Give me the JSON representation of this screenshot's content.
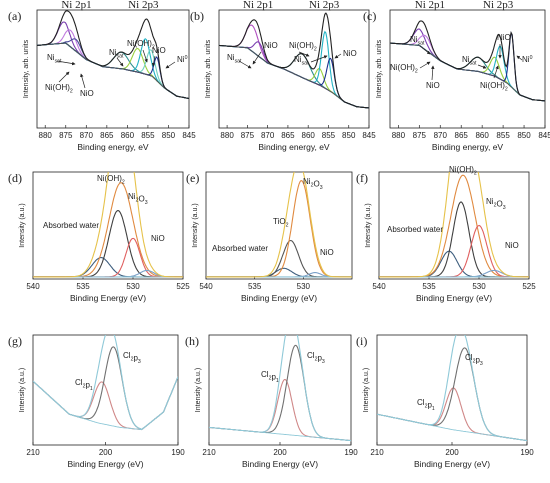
{
  "chart_data": [
    {
      "panel": "(a)",
      "type": "line",
      "xlabel": "Binding energy, eV",
      "ylabel": "Intensity, arb. units",
      "xlim": [
        882,
        845
      ],
      "xticks": [
        880,
        875,
        870,
        865,
        860,
        855,
        850,
        845
      ],
      "ylim": [
        0,
        1
      ],
      "xreverse": true,
      "headers": [
        "Ni 2p1",
        "Ni 2p3"
      ],
      "background": [
        [
          882,
          0.7
        ],
        [
          875,
          0.72
        ],
        [
          870,
          0.58
        ],
        [
          866,
          0.52
        ],
        [
          861,
          0.5
        ],
        [
          857,
          0.47
        ],
        [
          854,
          0.44
        ],
        [
          851,
          0.34
        ],
        [
          848,
          0.27
        ],
        [
          845,
          0.25
        ]
      ],
      "series": [
        {
          "color": "#7a3fb0",
          "center": 875.5,
          "width": 1.4,
          "height": 0.18
        },
        {
          "color": "#c07adf",
          "center": 873.8,
          "width": 1.3,
          "height": 0.14
        },
        {
          "color": "#4b4b9b",
          "center": 872.5,
          "width": 1.2,
          "height": 0.1
        },
        {
          "color": "#2f8f8f",
          "center": 861.5,
          "width": 1.8,
          "height": 0.14
        },
        {
          "color": "#9ad040",
          "center": 857.5,
          "width": 1.3,
          "height": 0.2
        },
        {
          "color": "#22b3c5",
          "center": 855.6,
          "width": 1.1,
          "height": 0.3
        },
        {
          "color": "#6fd1c0",
          "center": 854.3,
          "width": 1.0,
          "height": 0.22
        },
        {
          "color": "#1c2f8f",
          "center": 852.8,
          "width": 0.7,
          "height": 0.2
        }
      ],
      "annotations": [
        "Ni_sat",
        "Ni(OH)2",
        "NiO",
        "Ni_sat",
        "Ni(OH)2",
        "NiO",
        "Ni0"
      ]
    },
    {
      "panel": "(b)",
      "type": "line",
      "xlabel": "Binding energy, eV",
      "ylabel": "Intensity, arb. units",
      "xlim": [
        882,
        845
      ],
      "xticks": [
        880,
        875,
        870,
        865,
        860,
        855,
        850,
        845
      ],
      "ylim": [
        0,
        1
      ],
      "xreverse": true,
      "headers": [
        "Ni 2p1",
        "Ni 2p3"
      ],
      "background": [
        [
          882,
          0.7
        ],
        [
          875,
          0.68
        ],
        [
          870,
          0.55
        ],
        [
          866,
          0.5
        ],
        [
          861,
          0.42
        ],
        [
          857,
          0.36
        ],
        [
          854,
          0.3
        ],
        [
          851,
          0.22
        ],
        [
          848,
          0.18
        ],
        [
          845,
          0.17
        ]
      ],
      "series": [
        {
          "color": "#b04fc0",
          "center": 873.8,
          "width": 1.5,
          "height": 0.22
        },
        {
          "color": "#7a3fb0",
          "center": 872.2,
          "width": 1.1,
          "height": 0.12
        },
        {
          "color": "#2f8f8f",
          "center": 861.5,
          "width": 1.9,
          "height": 0.2
        },
        {
          "color": "#9ad040",
          "center": 857.2,
          "width": 1.0,
          "height": 0.14
        },
        {
          "color": "#22b3c5",
          "center": 855.8,
          "width": 0.9,
          "height": 0.48
        },
        {
          "color": "#1c2f8f",
          "center": 854.5,
          "width": 0.9,
          "height": 0.28
        }
      ],
      "annotations": [
        "Ni_sat",
        "NiO",
        "Ni(OH)2",
        "Ni_sat",
        "NiO"
      ]
    },
    {
      "panel": "(c)",
      "type": "line",
      "xlabel": "Binding energy, eV",
      "ylabel": "Intensity, arb. units",
      "xlim": [
        882,
        845
      ],
      "xticks": [
        880,
        875,
        870,
        865,
        860,
        855,
        850,
        845
      ],
      "ylim": [
        0,
        1
      ],
      "xreverse": true,
      "headers": [
        "Ni 2p1",
        "Ni 2p3"
      ],
      "background": [
        [
          882,
          0.72
        ],
        [
          875,
          0.7
        ],
        [
          870,
          0.57
        ],
        [
          866,
          0.5
        ],
        [
          861,
          0.48
        ],
        [
          857,
          0.44
        ],
        [
          854,
          0.38
        ],
        [
          851,
          0.28
        ],
        [
          848,
          0.24
        ],
        [
          845,
          0.23
        ]
      ],
      "series": [
        {
          "color": "#7a3fb0",
          "center": 875.0,
          "width": 1.4,
          "height": 0.14
        },
        {
          "color": "#c07adf",
          "center": 873.5,
          "width": 1.3,
          "height": 0.12
        },
        {
          "color": "#2f8f8f",
          "center": 861.0,
          "width": 1.8,
          "height": 0.12
        },
        {
          "color": "#9ad040",
          "center": 857.0,
          "width": 1.1,
          "height": 0.16
        },
        {
          "color": "#22b3c5",
          "center": 855.7,
          "width": 0.9,
          "height": 0.28
        },
        {
          "color": "#1c2f8f",
          "center": 853.0,
          "width": 0.6,
          "height": 0.46
        }
      ],
      "annotations": [
        "Ni_sat",
        "Ni(OH)2",
        "NiO",
        "Ni_sat",
        "NiO",
        "Ni(OH)2",
        "Ni0"
      ]
    },
    {
      "panel": "(d)",
      "type": "line",
      "xlabel": "Binding Energy (eV)",
      "ylabel": "Intensity (a.u.)",
      "xlim": [
        540,
        525
      ],
      "xticks": [
        540,
        535,
        530,
        525
      ],
      "ylim": [
        0,
        1
      ],
      "xreverse": true,
      "background": [
        [
          540,
          0.02
        ],
        [
          525,
          0.02
        ]
      ],
      "series": [
        {
          "color": "#3f5f7f",
          "center": 533.2,
          "width": 0.9,
          "height": 0.18
        },
        {
          "color": "#404040",
          "center": 531.5,
          "width": 0.9,
          "height": 0.62
        },
        {
          "color": "#e08a40",
          "center": 531.2,
          "width": 1.2,
          "height": 0.88
        },
        {
          "color": "#e06060",
          "center": 530.0,
          "width": 0.7,
          "height": 0.36
        },
        {
          "color": "#7aa0c8",
          "center": 528.6,
          "width": 0.7,
          "height": 0.06
        }
      ],
      "annotations": [
        "Ni(OH)2",
        "Ni2O3",
        "Absorbed water",
        "NiO"
      ]
    },
    {
      "panel": "(e)",
      "type": "line",
      "xlabel": "Binding Energy (eV)",
      "ylabel": "Intensity (a.u.)",
      "xlim": [
        540,
        525
      ],
      "xticks": [
        540,
        535,
        530
      ],
      "ylim": [
        0,
        1
      ],
      "xreverse": true,
      "background": [
        [
          540,
          0.02
        ],
        [
          525,
          0.02
        ]
      ],
      "series": [
        {
          "color": "#3f5f7f",
          "center": 532.0,
          "width": 0.8,
          "height": 0.08
        },
        {
          "color": "#555555",
          "center": 531.3,
          "width": 0.8,
          "height": 0.34
        },
        {
          "color": "#e08a40",
          "center": 530.2,
          "width": 0.9,
          "height": 0.9
        },
        {
          "color": "#7aa0c8",
          "center": 528.8,
          "width": 0.6,
          "height": 0.04
        }
      ],
      "annotations": [
        "Ni2O3",
        "TiO2",
        "Absorbed water",
        "NiO"
      ]
    },
    {
      "panel": "(f)",
      "type": "line",
      "xlabel": "Binding Energy (eV)",
      "ylabel": "Intensity (a.u.)",
      "xlim": [
        540,
        525
      ],
      "xticks": [
        540,
        535,
        530,
        525
      ],
      "ylim": [
        0,
        1
      ],
      "xreverse": true,
      "background": [
        [
          540,
          0.02
        ],
        [
          525,
          0.02
        ]
      ],
      "series": [
        {
          "color": "#3f5f7f",
          "center": 533.0,
          "width": 0.8,
          "height": 0.24
        },
        {
          "color": "#404040",
          "center": 531.8,
          "width": 0.8,
          "height": 0.7
        },
        {
          "color": "#e08a40",
          "center": 531.6,
          "width": 1.2,
          "height": 0.95
        },
        {
          "color": "#e06060",
          "center": 530.0,
          "width": 0.8,
          "height": 0.48
        },
        {
          "color": "#7aa0c8",
          "center": 528.5,
          "width": 0.8,
          "height": 0.06
        }
      ],
      "annotations": [
        "Ni(OH)2",
        "Ni2O3",
        "Absorbed water",
        "NiO"
      ]
    },
    {
      "panel": "(g)",
      "type": "line",
      "xlabel": "Binding Energy (eV)",
      "ylabel": "Intensity (a.u.)",
      "xlim": [
        210,
        190
      ],
      "xticks": [
        210,
        200,
        190
      ],
      "ylim": [
        0,
        1
      ],
      "xreverse": true,
      "background": [
        [
          210,
          0.58
        ],
        [
          205,
          0.28
        ],
        [
          201,
          0.2
        ],
        [
          198,
          0.16
        ],
        [
          195,
          0.14
        ],
        [
          192,
          0.3
        ],
        [
          190,
          0.62
        ]
      ],
      "series": [
        {
          "color": "#d08888",
          "center": 200.5,
          "width": 1.1,
          "height": 0.38
        },
        {
          "color": "#707070",
          "center": 198.9,
          "width": 1.2,
          "height": 0.72
        }
      ],
      "annotations": [
        "Cl2p3",
        "Cl2p1"
      ]
    },
    {
      "panel": "(h)",
      "type": "line",
      "xlabel": "Binding Energy (eV)",
      "ylabel": "Intensity (a.u.)",
      "xlim": [
        210,
        190
      ],
      "xticks": [
        210,
        200,
        190
      ],
      "ylim": [
        0,
        1
      ],
      "xreverse": true,
      "background": [
        [
          210,
          0.16
        ],
        [
          200,
          0.1
        ],
        [
          190,
          0.04
        ]
      ],
      "series": [
        {
          "color": "#d08888",
          "center": 199.3,
          "width": 1.0,
          "height": 0.5
        },
        {
          "color": "#707070",
          "center": 197.8,
          "width": 1.2,
          "height": 0.82
        }
      ],
      "annotations": [
        "Cl2p3",
        "Cl2p1"
      ]
    },
    {
      "panel": "(i)",
      "type": "line",
      "xlabel": "Binding Energy (eV)",
      "ylabel": "Intensity (a.u.)",
      "xlim": [
        210,
        190
      ],
      "xticks": [
        210,
        200,
        190
      ],
      "ylim": [
        0,
        1
      ],
      "xreverse": true,
      "background": [
        [
          210,
          0.28
        ],
        [
          200,
          0.14
        ],
        [
          190,
          0.04
        ]
      ],
      "series": [
        {
          "color": "#d08888",
          "center": 199.8,
          "width": 1.0,
          "height": 0.38
        },
        {
          "color": "#707070",
          "center": 198.3,
          "width": 1.3,
          "height": 0.76
        }
      ],
      "annotations": [
        "Cl2p3",
        "Cl2p1"
      ]
    }
  ]
}
